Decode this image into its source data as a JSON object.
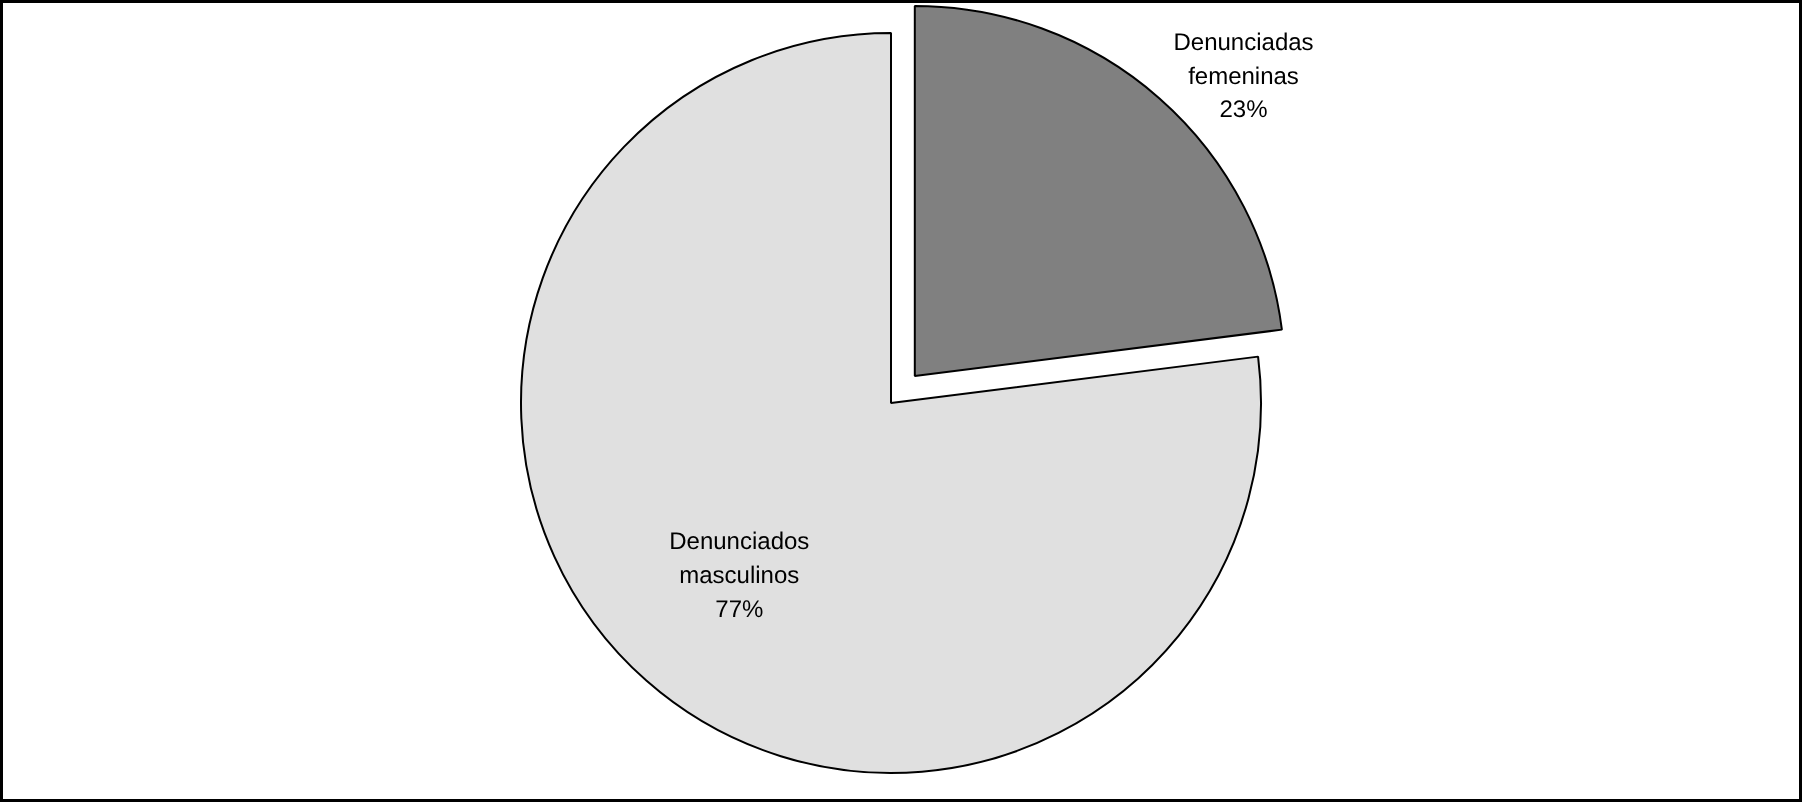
{
  "chart_data": {
    "type": "pie",
    "categories": [
      "Denunciadas femeninas",
      "Denunciados masculinos"
    ],
    "values": [
      23,
      77
    ],
    "colors": [
      "#808080",
      "#e0e0e0"
    ],
    "value_labels": [
      "23%",
      "77%"
    ]
  }
}
